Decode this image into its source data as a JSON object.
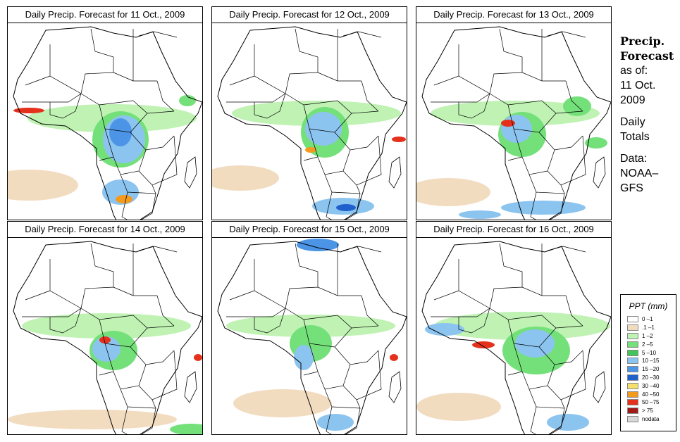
{
  "panels": [
    {
      "title": "Daily Precip. Forecast for  11 Oct., 2009"
    },
    {
      "title": "Daily Precip. Forecast for  12 Oct., 2009"
    },
    {
      "title": "Daily Precip. Forecast for  13 Oct., 2009"
    },
    {
      "title": "Daily Precip. Forecast for  14 Oct., 2009"
    },
    {
      "title": "Daily Precip. Forecast for  15 Oct., 2009"
    },
    {
      "title": "Daily Precip. Forecast for  16 Oct., 2009"
    }
  ],
  "side": {
    "heading1": "Precip.",
    "heading2": "Forecast",
    "asof": "as of:",
    "date1": "11 Oct.",
    "date2": "2009",
    "totals1": "Daily",
    "totals2": "Totals",
    "data1": "Data:",
    "data2": "NOAA–",
    "data3": "GFS"
  },
  "legend": {
    "title": "PPT (mm)",
    "items": [
      {
        "label": "0 –1",
        "color": "#ffffff"
      },
      {
        "label": ".1 –1",
        "color": "#f2dcc0"
      },
      {
        "label": "1 –2",
        "color": "#bff2b3"
      },
      {
        "label": "2 –5",
        "color": "#74e07a"
      },
      {
        "label": "5 –10",
        "color": "#43c45a"
      },
      {
        "label": "10 –15",
        "color": "#8cc4f0"
      },
      {
        "label": "15 –20",
        "color": "#4c94e6"
      },
      {
        "label": "20 –30",
        "color": "#2060cc"
      },
      {
        "label": "30 –40",
        "color": "#f6e06c"
      },
      {
        "label": "40 –50",
        "color": "#f49a1e"
      },
      {
        "label": "50 –75",
        "color": "#e5301c"
      },
      {
        "label": "> 75",
        "color": "#a01818"
      },
      {
        "label": "nodata",
        "color": "#d8d8d8"
      }
    ]
  }
}
